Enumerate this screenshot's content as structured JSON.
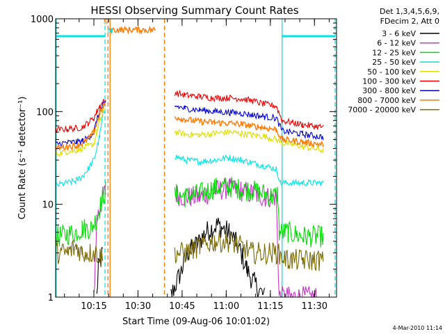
{
  "chart_data": {
    "type": "line",
    "title": "HESSI Observing Summary Count Rates",
    "xlabel": "Start Time (09-Aug-06 10:01:02)",
    "ylabel": "Count Rate (s⁻¹ detector⁻¹)",
    "yscale": "log",
    "ylim": [
      1,
      1000
    ],
    "xlim_minutes": [
      1.0,
      96.5
    ],
    "x_ticks": [
      {
        "m": 14,
        "label": "10:15"
      },
      {
        "m": 29,
        "label": "10:30"
      },
      {
        "m": 44,
        "label": "10:45"
      },
      {
        "m": 59,
        "label": "11:00"
      },
      {
        "m": 74,
        "label": "11:15"
      },
      {
        "m": 89,
        "label": "11:30"
      }
    ],
    "y_ticks": [
      {
        "v": 1,
        "label": "1"
      },
      {
        "v": 10,
        "label": "10"
      },
      {
        "v": 100,
        "label": "100"
      },
      {
        "v": 1000,
        "label": "1000"
      }
    ],
    "legend_header": [
      "Det 1,3,4,5,6,9,",
      "FDecim 2, Att 0"
    ],
    "legend_position": "right",
    "series": [
      {
        "name": "3 - 6 keV",
        "color": "#000000",
        "pts": [
          [
            1,
            null
          ],
          [
            15,
            1
          ],
          [
            15.5,
            2
          ],
          [
            17,
            3
          ],
          [
            19,
            null
          ],
          [
            38,
            null
          ],
          [
            40,
            1
          ],
          [
            44,
            2
          ],
          [
            46,
            3
          ],
          [
            50,
            4
          ],
          [
            52,
            5
          ],
          [
            56,
            6
          ],
          [
            60,
            5
          ],
          [
            62,
            4
          ],
          [
            64,
            3
          ],
          [
            66,
            2
          ],
          [
            68,
            1.5
          ],
          [
            72,
            1
          ],
          [
            80,
            null
          ]
        ]
      },
      {
        "name": "6 - 12 keV",
        "color": "#cc33cc",
        "pts": [
          [
            1,
            null
          ],
          [
            14,
            1
          ],
          [
            15,
            7
          ],
          [
            16,
            9
          ],
          [
            17,
            12
          ],
          [
            18,
            14
          ],
          [
            19,
            null
          ],
          [
            41,
            null
          ],
          [
            41.5,
            13
          ],
          [
            45,
            12
          ],
          [
            50,
            12
          ],
          [
            55,
            14
          ],
          [
            60,
            15
          ],
          [
            64,
            14
          ],
          [
            68,
            13
          ],
          [
            72,
            12
          ],
          [
            76,
            12
          ],
          [
            77,
            1
          ],
          [
            80,
            1
          ],
          [
            90,
            1
          ]
        ]
      },
      {
        "name": "12 - 25 keV",
        "color": "#00dd00",
        "pts": [
          [
            1,
            4.5
          ],
          [
            2,
            4.5
          ],
          [
            8,
            5
          ],
          [
            10,
            5.5
          ],
          [
            13,
            5.5
          ],
          [
            15,
            7
          ],
          [
            16,
            9
          ],
          [
            17,
            12
          ],
          [
            18,
            14
          ],
          [
            19,
            null
          ],
          [
            41,
            null
          ],
          [
            41.5,
            13
          ],
          [
            45,
            12
          ],
          [
            50,
            13
          ],
          [
            55,
            15
          ],
          [
            60,
            15.5
          ],
          [
            64,
            14.5
          ],
          [
            68,
            14
          ],
          [
            72,
            13
          ],
          [
            75,
            12
          ],
          [
            76.5,
            13
          ],
          [
            77,
            5
          ],
          [
            80,
            5
          ],
          [
            85,
            4.5
          ],
          [
            90,
            4.5
          ],
          [
            92,
            4.5
          ]
        ]
      },
      {
        "name": "25 - 50 keV",
        "color": "#00e5e5",
        "pts": [
          [
            1,
            16
          ],
          [
            5,
            17
          ],
          [
            8,
            18
          ],
          [
            10,
            20
          ],
          [
            12,
            24
          ],
          [
            14,
            30
          ],
          [
            15,
            40
          ],
          [
            16,
            55
          ],
          [
            17,
            90
          ],
          [
            18,
            110
          ],
          [
            19,
            null
          ],
          [
            41,
            null
          ],
          [
            41.5,
            33
          ],
          [
            45,
            30
          ],
          [
            50,
            29
          ],
          [
            55,
            30
          ],
          [
            60,
            32
          ],
          [
            64,
            30
          ],
          [
            68,
            28
          ],
          [
            72,
            26
          ],
          [
            76,
            24
          ],
          [
            77.5,
            17
          ],
          [
            85,
            17
          ],
          [
            92,
            17
          ]
        ]
      },
      {
        "name": "50 - 100 keV",
        "color": "#dddd00",
        "pts": [
          [
            1,
            35
          ],
          [
            5,
            37
          ],
          [
            8,
            38
          ],
          [
            10,
            40
          ],
          [
            12,
            42
          ],
          [
            14,
            45
          ],
          [
            15,
            60
          ],
          [
            16,
            80
          ],
          [
            17,
            95
          ],
          [
            18,
            110
          ],
          [
            19,
            null
          ],
          [
            41,
            null
          ],
          [
            41.5,
            60
          ],
          [
            45,
            57
          ],
          [
            50,
            56
          ],
          [
            55,
            58
          ],
          [
            60,
            60
          ],
          [
            64,
            58
          ],
          [
            68,
            56
          ],
          [
            72,
            54
          ],
          [
            76,
            50
          ],
          [
            78,
            46
          ],
          [
            85,
            42
          ],
          [
            92,
            38
          ]
        ]
      },
      {
        "name": "100 - 300 keV",
        "color": "#ee0000",
        "pts": [
          [
            1,
            63
          ],
          [
            5,
            65
          ],
          [
            8,
            66
          ],
          [
            10,
            68
          ],
          [
            12,
            75
          ],
          [
            14,
            85
          ],
          [
            15,
            100
          ],
          [
            16,
            115
          ],
          [
            17,
            125
          ],
          [
            18,
            130
          ],
          [
            19,
            null
          ],
          [
            41,
            null
          ],
          [
            41.5,
            160
          ],
          [
            45,
            150
          ],
          [
            50,
            145
          ],
          [
            55,
            140
          ],
          [
            60,
            140
          ],
          [
            64,
            138
          ],
          [
            68,
            130
          ],
          [
            72,
            120
          ],
          [
            76,
            115
          ],
          [
            78,
            80
          ],
          [
            85,
            72
          ],
          [
            92,
            68
          ]
        ]
      },
      {
        "name": "300 - 800 keV",
        "color": "#0000dd",
        "pts": [
          [
            1,
            45
          ],
          [
            5,
            46
          ],
          [
            8,
            47
          ],
          [
            10,
            48
          ],
          [
            12,
            52
          ],
          [
            14,
            60
          ],
          [
            15,
            80
          ],
          [
            16,
            100
          ],
          [
            17,
            115
          ],
          [
            18,
            125
          ],
          [
            19,
            null
          ],
          [
            41,
            null
          ],
          [
            41.5,
            115
          ],
          [
            45,
            108
          ],
          [
            50,
            104
          ],
          [
            55,
            100
          ],
          [
            60,
            98
          ],
          [
            64,
            96
          ],
          [
            68,
            92
          ],
          [
            72,
            88
          ],
          [
            76,
            85
          ],
          [
            78,
            62
          ],
          [
            85,
            57
          ],
          [
            92,
            53
          ]
        ]
      },
      {
        "name": "800 - 7000 keV",
        "color": "#ff7700",
        "pts": [
          [
            1,
            40
          ],
          [
            5,
            42
          ],
          [
            8,
            43
          ],
          [
            10,
            45
          ],
          [
            12,
            50
          ],
          [
            14,
            60
          ],
          [
            15,
            75
          ],
          [
            16,
            95
          ],
          [
            17,
            110
          ],
          [
            18,
            120
          ],
          [
            19,
            null
          ],
          [
            19.5,
            760
          ],
          [
            35,
            760
          ],
          [
            35.5,
            null
          ],
          [
            41,
            null
          ],
          [
            41.5,
            88
          ],
          [
            45,
            82
          ],
          [
            50,
            78
          ],
          [
            55,
            76
          ],
          [
            60,
            75
          ],
          [
            64,
            73
          ],
          [
            68,
            70
          ],
          [
            72,
            67
          ],
          [
            76,
            64
          ],
          [
            78,
            50
          ],
          [
            85,
            47
          ],
          [
            92,
            44
          ]
        ]
      },
      {
        "name": "7000 - 20000 keV",
        "color": "#7a6a00",
        "pts": [
          [
            1,
            3
          ],
          [
            5,
            3
          ],
          [
            8,
            3.5
          ],
          [
            10,
            3
          ],
          [
            13,
            3
          ],
          [
            15,
            3
          ],
          [
            17,
            2.5
          ],
          [
            19,
            null
          ],
          [
            41,
            null
          ],
          [
            41.5,
            3
          ],
          [
            45,
            3
          ],
          [
            50,
            3.5
          ],
          [
            55,
            4
          ],
          [
            60,
            4
          ],
          [
            64,
            3.5
          ],
          [
            68,
            3
          ],
          [
            72,
            3
          ],
          [
            76,
            3
          ],
          [
            80,
            2.5
          ],
          [
            85,
            2.5
          ],
          [
            92,
            2.5
          ]
        ]
      }
    ],
    "flags": [
      {
        "label": "S",
        "color": "#ff7700",
        "m": 18,
        "level": 880
      },
      {
        "label": "N",
        "color": "#00e5e5",
        "m": 19.5,
        "level": 700
      }
    ],
    "cyan_bar": {
      "color": "#00e5e5",
      "level": 650,
      "segments": [
        [
          1,
          17.8
        ],
        [
          78,
          96
        ]
      ]
    },
    "vlines": [
      {
        "m": 1.2,
        "color": "#00e5e5",
        "style": "solid"
      },
      {
        "m": 17.8,
        "color": "#00e5e5",
        "style": "dashed"
      },
      {
        "m": 19.5,
        "color": "#ff7700",
        "style": "solid"
      },
      {
        "m": 18.8,
        "color": "#ff7700",
        "style": "dashed"
      },
      {
        "m": 38.0,
        "color": "#ff7700",
        "style": "dashed"
      },
      {
        "m": 78.0,
        "color": "#00e5e5",
        "style": "solid"
      },
      {
        "m": 96.0,
        "color": "#00e5e5",
        "style": "dashed"
      }
    ],
    "timestamp": "4-Mar-2010 11:14"
  }
}
